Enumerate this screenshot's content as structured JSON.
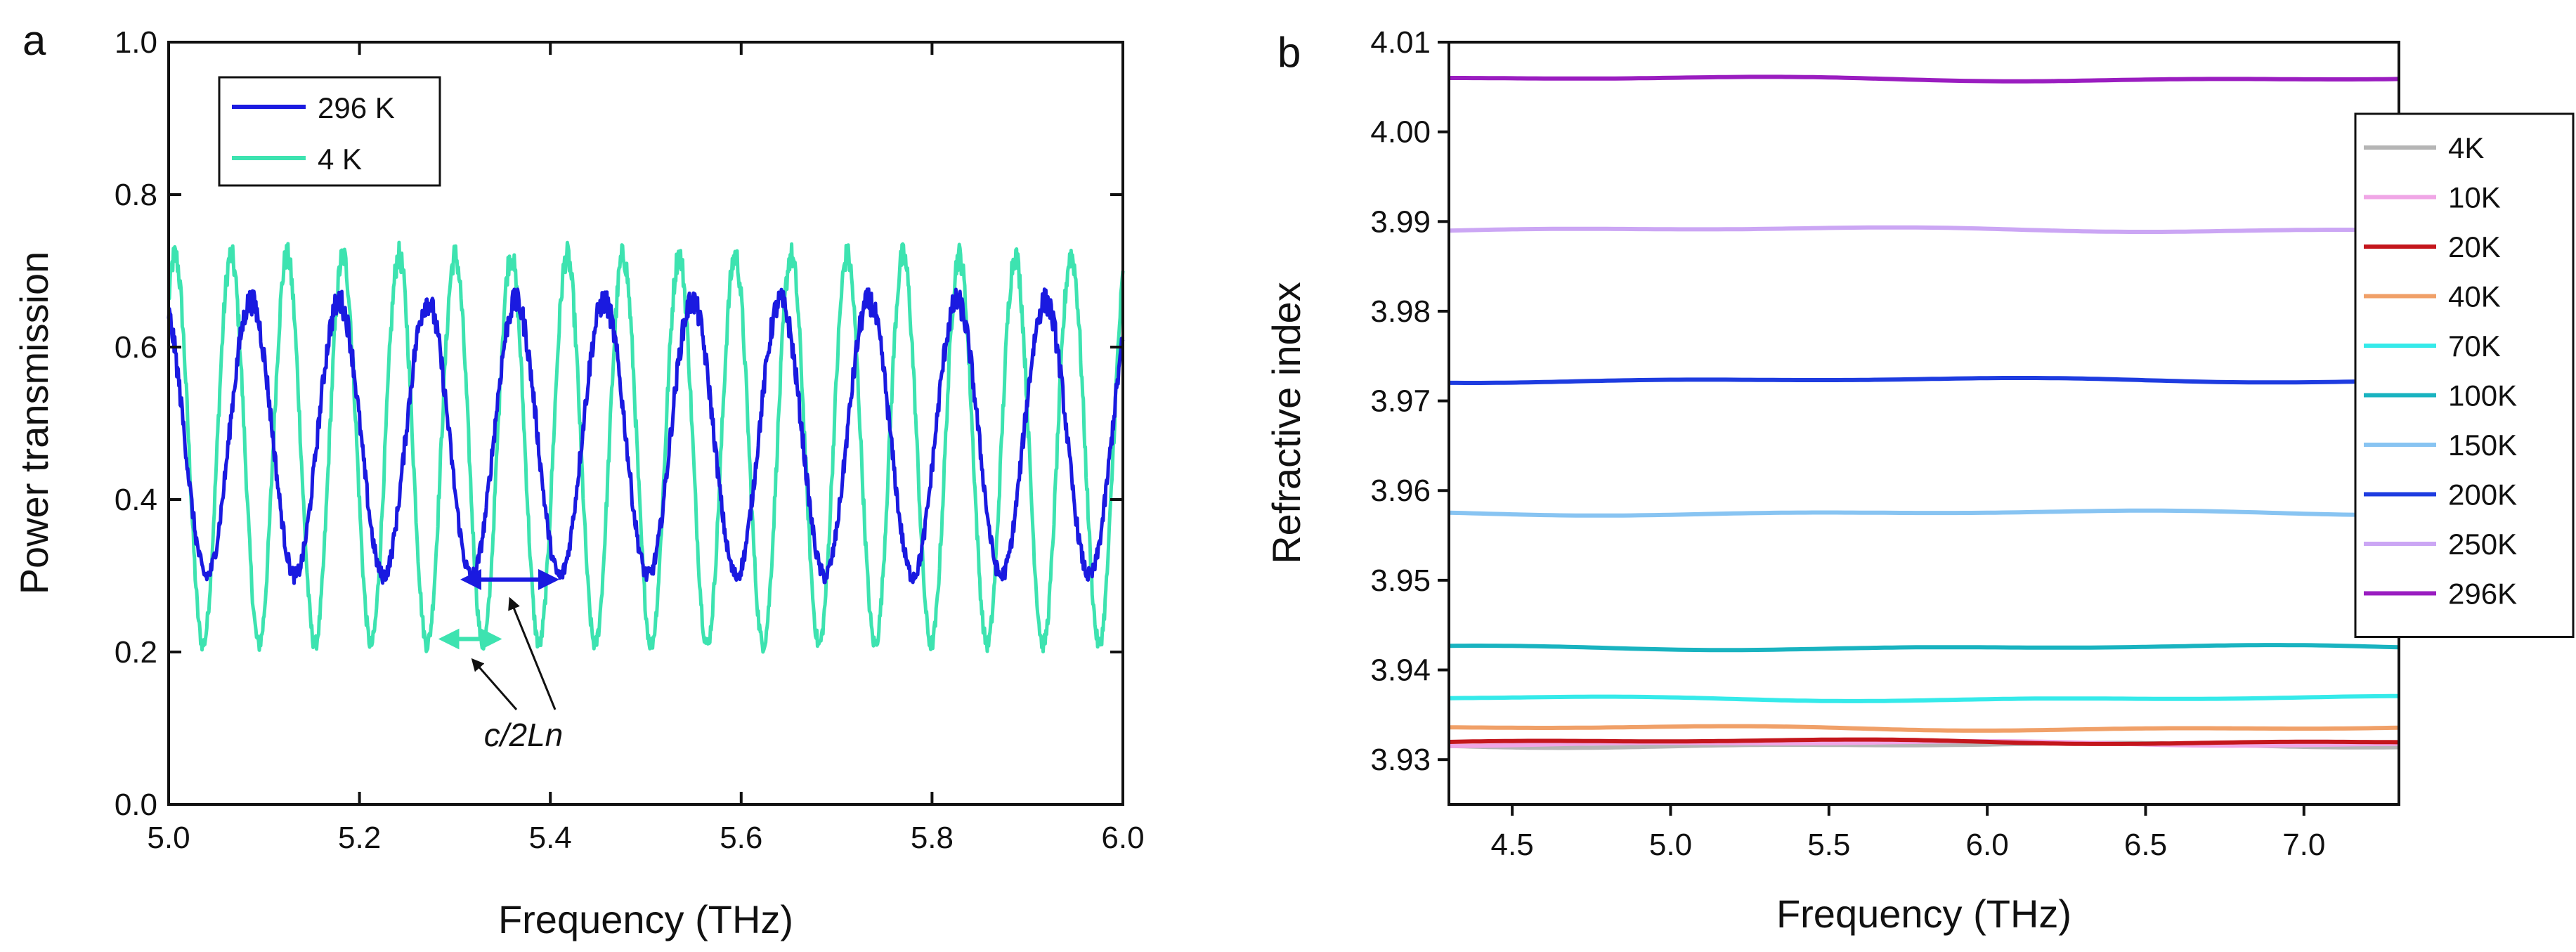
{
  "figure": {
    "panel_a_label": "a",
    "panel_b_label": "b"
  },
  "chart_data": [
    {
      "type": "line",
      "panel": "a",
      "xlabel": "Frequency (THz)",
      "ylabel": "Power transmission",
      "xlim": [
        5.0,
        6.0
      ],
      "ylim": [
        0.0,
        1.0
      ],
      "xticks": [
        5.0,
        5.2,
        5.4,
        5.6,
        5.8,
        6.0
      ],
      "xtick_labels": [
        "5.0",
        "5.2",
        "5.4",
        "5.6",
        "5.8",
        "6.0"
      ],
      "yticks": [
        0.0,
        0.2,
        0.4,
        0.6,
        0.8,
        1.0
      ],
      "ytick_labels": [
        "0.0",
        "0.2",
        "0.4",
        "0.6",
        "0.8",
        "1.0"
      ],
      "legend_position": "top-left",
      "series": [
        {
          "name": "296 K",
          "color": "#1a1ae0",
          "fringe_period_THz": 0.0925,
          "first_min_THz": 5.04,
          "min_value": 0.3,
          "max_value": 0.66
        },
        {
          "name": "4 K",
          "color": "#3de3b0",
          "fringe_period_THz": 0.0587,
          "first_min_THz": 5.036,
          "min_value": 0.21,
          "max_value": 0.72
        }
      ],
      "annotation": {
        "text": "c/2Ln",
        "arrow_296K_THz": [
          5.31,
          5.405
        ],
        "arrow_296K_y": 0.295,
        "arrow_4K_THz": [
          5.287,
          5.345
        ],
        "arrow_4K_y": 0.217
      }
    },
    {
      "type": "line",
      "panel": "b",
      "xlabel": "Frequency (THz)",
      "ylabel": "Refractive index",
      "xlim": [
        4.3,
        7.3
      ],
      "ylim": [
        3.925,
        4.01
      ],
      "xticks": [
        4.5,
        5.0,
        5.5,
        6.0,
        6.5,
        7.0
      ],
      "xtick_labels": [
        "4.5",
        "5.0",
        "5.5",
        "6.0",
        "6.5",
        "7.0"
      ],
      "yticks": [
        3.93,
        3.94,
        3.95,
        3.96,
        3.97,
        3.98,
        3.99,
        4.0,
        4.01
      ],
      "ytick_labels": [
        "3.93",
        "3.94",
        "3.95",
        "3.96",
        "3.97",
        "3.98",
        "3.99",
        "4.00",
        "4.01"
      ],
      "legend_position": "right",
      "series": [
        {
          "name": "4K",
          "color": "#b5b5b5",
          "value": 3.9316
        },
        {
          "name": "10K",
          "color": "#f0a6e6",
          "value": 3.9318
        },
        {
          "name": "20K",
          "color": "#c4161c",
          "value": 3.932
        },
        {
          "name": "40K",
          "color": "#f0a068",
          "value": 3.9335
        },
        {
          "name": "70K",
          "color": "#35eaea",
          "value": 3.9368
        },
        {
          "name": "100K",
          "color": "#19b3c0",
          "value": 3.9425
        },
        {
          "name": "150K",
          "color": "#88c4f2",
          "value": 3.9575
        },
        {
          "name": "200K",
          "color": "#1e3ce0",
          "value": 3.9723
        },
        {
          "name": "250K",
          "color": "#cba6f4",
          "value": 3.9891
        },
        {
          "name": "296K",
          "color": "#9a1dc0",
          "value": 4.0059
        }
      ]
    }
  ]
}
